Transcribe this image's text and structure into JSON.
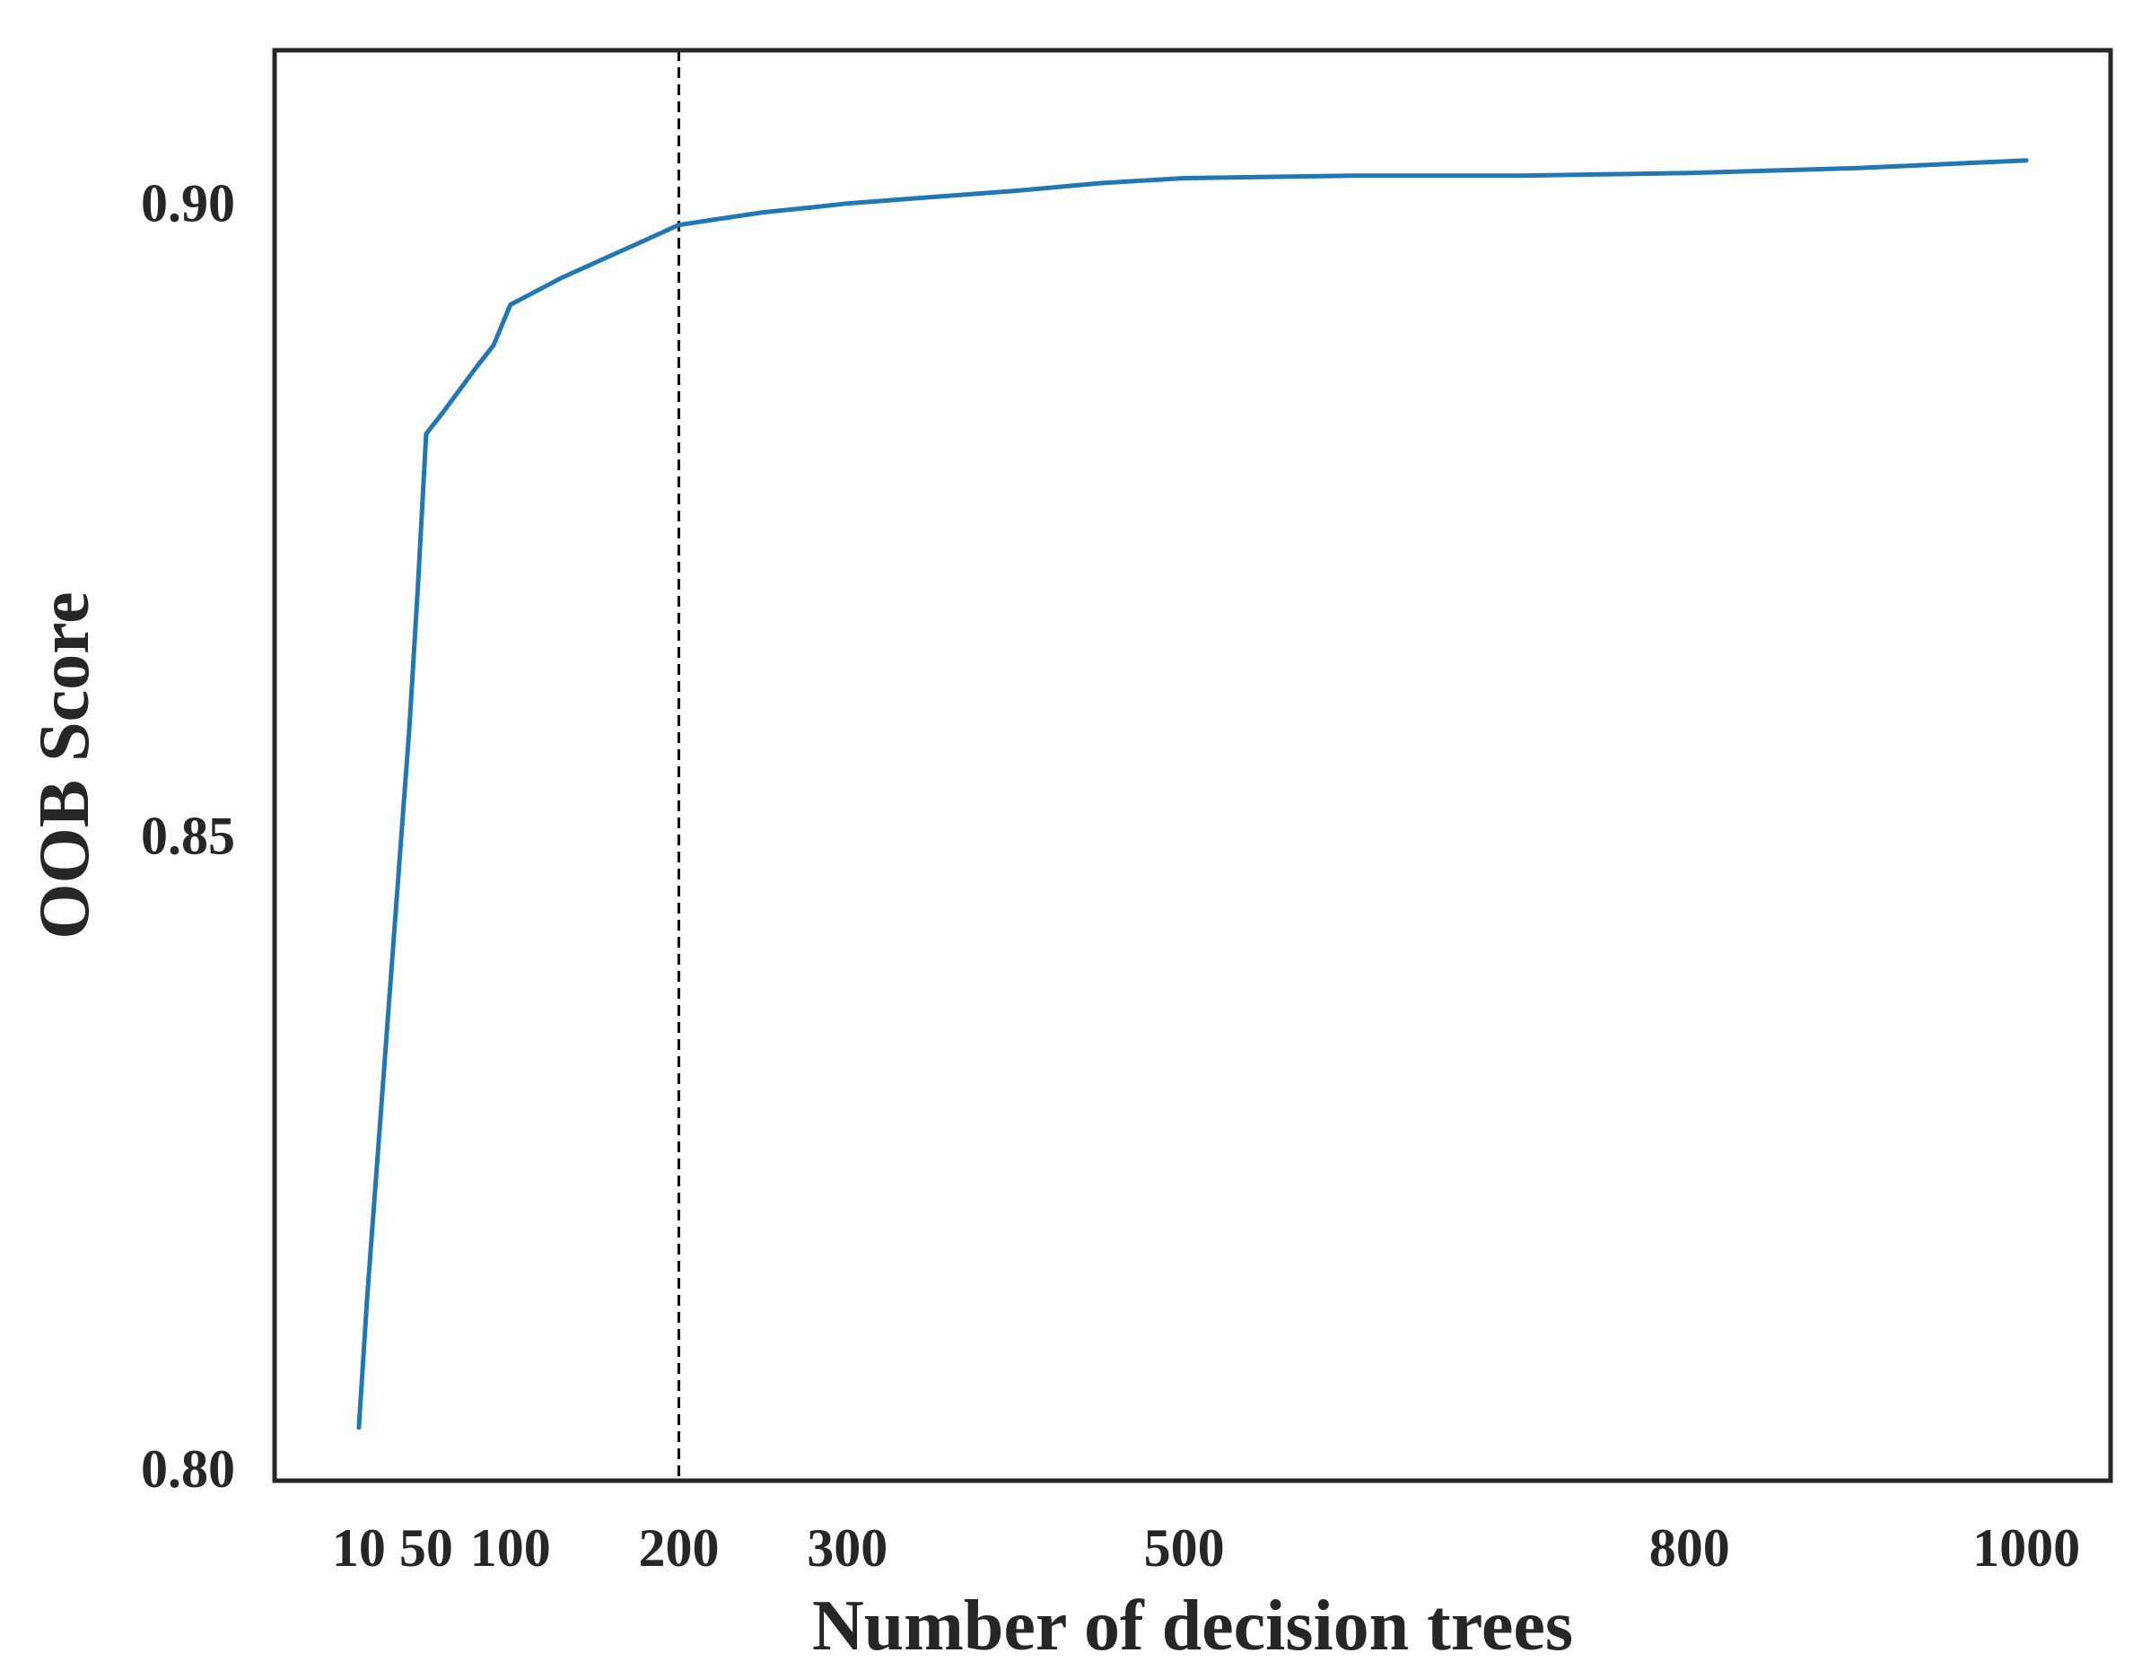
{
  "chart_data": {
    "type": "line",
    "title": "",
    "xlabel": "Number of decision trees",
    "ylabel": "OOB Score",
    "xlim": [
      -40,
      1050
    ],
    "ylim": [
      0.799,
      0.912
    ],
    "x_ticks": [
      10,
      50,
      100,
      200,
      300,
      500,
      800,
      1000
    ],
    "x_tick_labels": [
      "10",
      "50",
      "100",
      "200",
      "300",
      "500",
      "800",
      "1000"
    ],
    "y_ticks": [
      0.8,
      0.85,
      0.9
    ],
    "y_tick_labels": [
      "0.80",
      "0.85",
      "0.90"
    ],
    "grid": false,
    "legend": "none",
    "series": [
      {
        "color": "#1f77b4",
        "x": [
          10,
          15,
          20,
          25,
          30,
          35,
          40,
          45,
          50,
          60,
          70,
          80,
          90,
          100,
          110,
          120,
          130,
          140,
          150,
          160,
          170,
          180,
          190,
          200,
          220,
          250,
          280,
          300,
          350,
          400,
          450,
          500,
          550,
          600,
          650,
          700,
          750,
          800,
          850,
          900,
          950,
          1000
        ],
        "y": [
          0.8032,
          0.8135,
          0.8225,
          0.8315,
          0.8405,
          0.8495,
          0.8585,
          0.8695,
          0.8817,
          0.8834,
          0.8852,
          0.887,
          0.8887,
          0.8919,
          0.8926,
          0.8933,
          0.894,
          0.8946,
          0.8952,
          0.8958,
          0.8964,
          0.897,
          0.8976,
          0.8982,
          0.8986,
          0.8992,
          0.8996,
          0.8999,
          0.9004,
          0.9009,
          0.9015,
          0.9019,
          0.902,
          0.9021,
          0.9021,
          0.9021,
          0.9022,
          0.9023,
          0.9025,
          0.9027,
          0.903,
          0.9033
        ]
      }
    ],
    "reference_line": {
      "axis": "x",
      "value": 200,
      "style": "dashed",
      "color": "#000000"
    }
  }
}
